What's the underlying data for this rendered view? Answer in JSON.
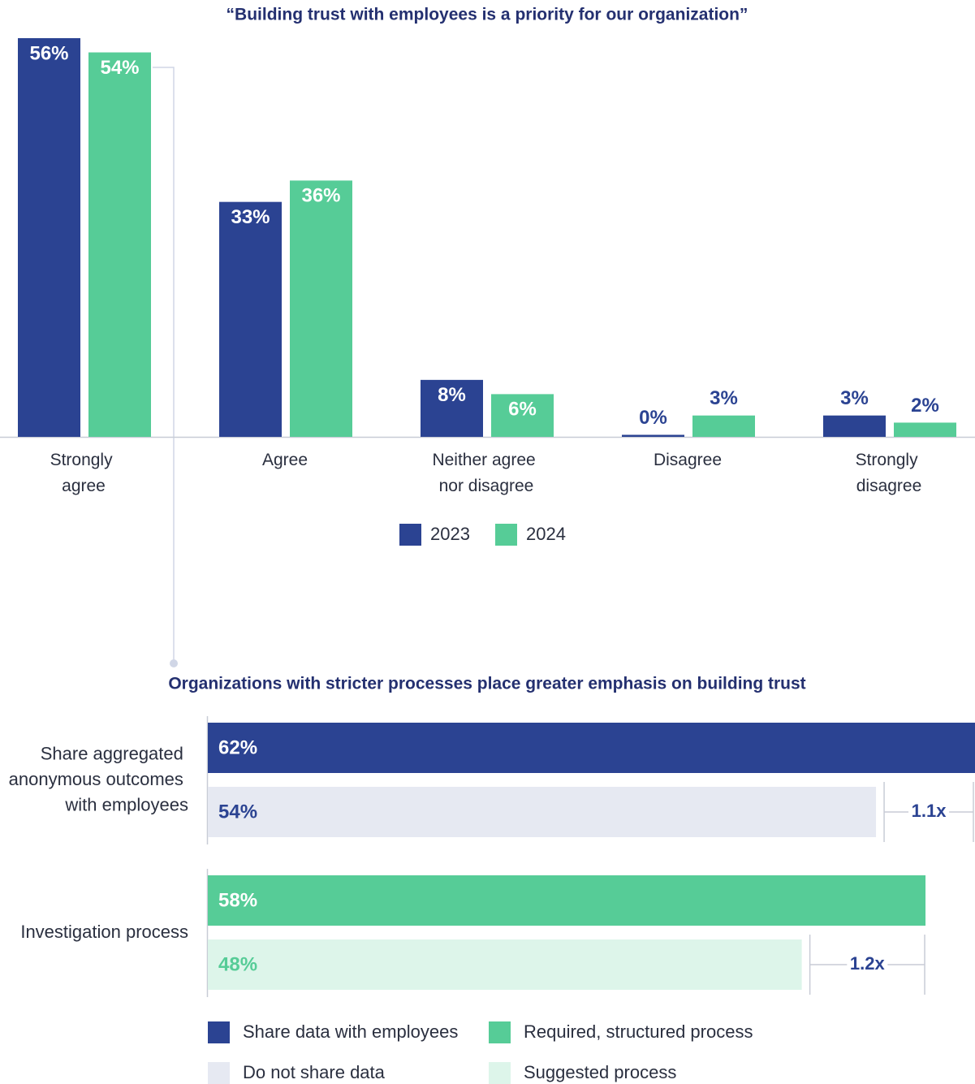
{
  "chart_data": [
    {
      "type": "bar",
      "title": "“Building trust with employees is a priority for our organization”",
      "categories": [
        "Strongly agree",
        "Agree",
        "Neither agree nor disagree",
        "Disagree",
        "Strongly disagree"
      ],
      "series": [
        {
          "name": "2023",
          "color": "#2b4392",
          "values": [
            56,
            33,
            8,
            0,
            3
          ],
          "value_labels": [
            "56%",
            "33%",
            "8%",
            "0%",
            "3%"
          ]
        },
        {
          "name": "2024",
          "color": "#56cc97",
          "values": [
            54,
            36,
            6,
            3,
            2
          ],
          "value_labels": [
            "54%",
            "36%",
            "6%",
            "3%",
            "2%"
          ]
        }
      ]
    },
    {
      "type": "hbar",
      "title": "Organizations with stricter processes place greater emphasis on building trust",
      "categories": [
        "Share aggregated anonymous outcomes with employees",
        "Investigation process"
      ],
      "series": [
        {
          "name": "Share data with employees",
          "color": "#2b4392",
          "label_color": "#ffffff",
          "values": [
            62,
            null
          ],
          "value_labels": [
            "62%",
            null
          ]
        },
        {
          "name": "Do not share data",
          "color": "#e6e9f2",
          "label_color": "#2b4392",
          "values": [
            54,
            null
          ],
          "value_labels": [
            "54%",
            null
          ]
        },
        {
          "name": "Required, structured process",
          "color": "#56cc97",
          "label_color": "#ffffff",
          "values": [
            null,
            58
          ],
          "value_labels": [
            null,
            "58%"
          ]
        },
        {
          "name": "Suggested process",
          "color": "#ddf5ea",
          "label_color": "#56cc97",
          "values": [
            null,
            48
          ],
          "value_labels": [
            null,
            "48%"
          ]
        }
      ],
      "annotations": [
        "1.1x",
        "1.2x"
      ]
    }
  ]
}
